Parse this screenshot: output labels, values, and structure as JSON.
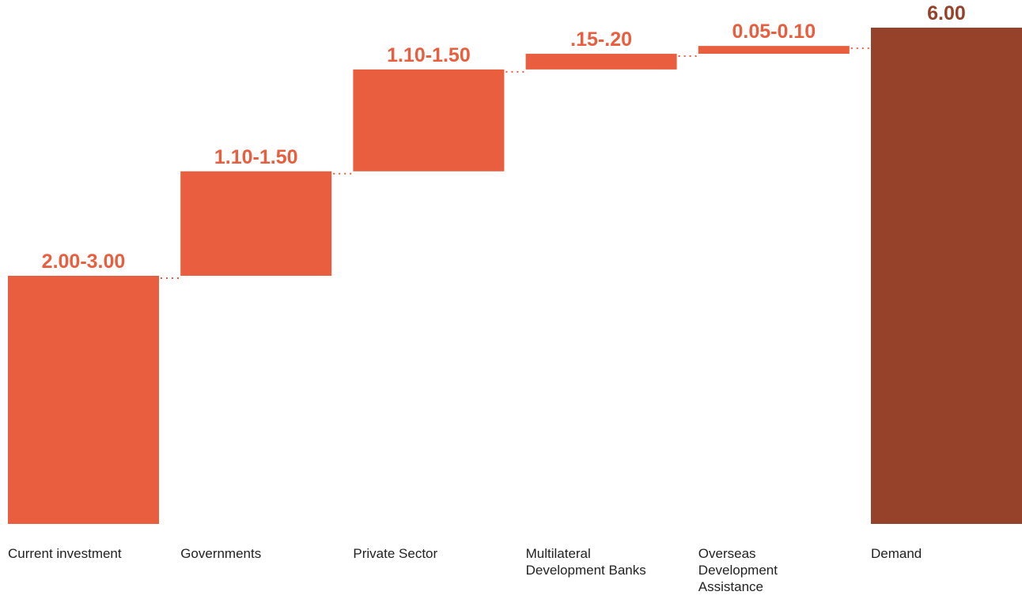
{
  "chart_data": {
    "type": "bar",
    "subtype": "waterfall",
    "categories": [
      [
        "Current investment"
      ],
      [
        "Governments"
      ],
      [
        "Private Sector"
      ],
      [
        "Multilateral",
        "Development Banks"
      ],
      [
        "Overseas",
        "Development",
        "Assistance"
      ],
      [
        "Demand"
      ]
    ],
    "value_labels": [
      "2.00-3.00",
      "1.10-1.50",
      "1.10-1.50",
      ".15-.20",
      "0.05-0.10",
      "6.00"
    ],
    "bars": [
      {
        "start": 0,
        "end": 1.9
      },
      {
        "start": 1.9,
        "end": 2.7
      },
      {
        "start": 2.7,
        "end": 3.48
      },
      {
        "start": 3.48,
        "end": 3.6
      },
      {
        "start": 3.6,
        "end": 3.66
      },
      {
        "start": 0,
        "end": 3.8,
        "total": true
      }
    ],
    "ylim": [
      0,
      3.8
    ],
    "grid": false,
    "connectors": "dotted",
    "colors": {
      "increment": "#E85E3E",
      "total": "#96412A",
      "increment_label": "#E85E3E",
      "total_label": "#96412A",
      "connector": "#E85E3E",
      "category_text": "#222222"
    }
  }
}
